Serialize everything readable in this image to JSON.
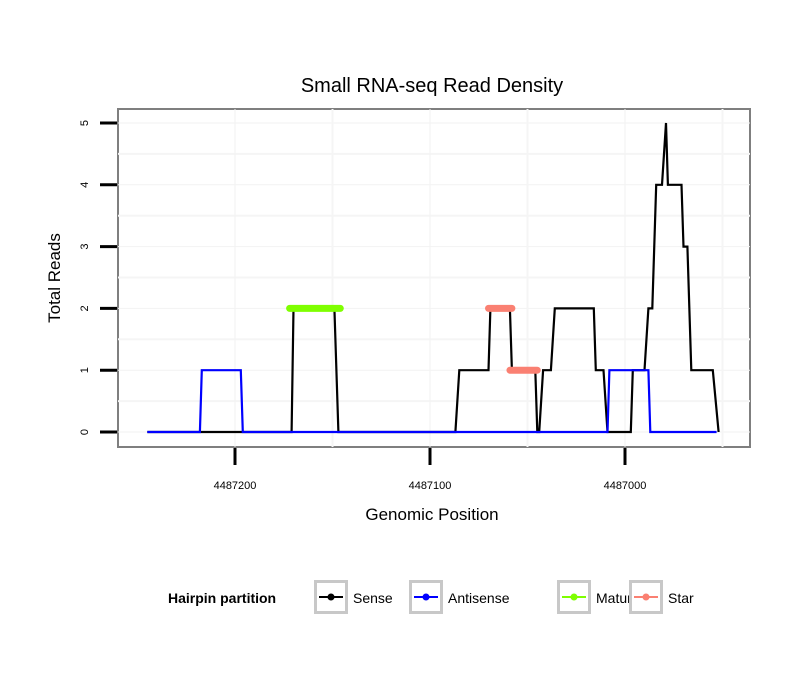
{
  "chart_data": {
    "type": "line",
    "title": "Small RNA-seq Read Density",
    "xlabel": "Genomic Position",
    "ylabel": "Total Reads",
    "x_reversed": true,
    "xlim": [
      4487260,
      4486935
    ],
    "ylim": [
      0,
      5
    ],
    "x_ticks": [
      4487200,
      4487100,
      4487000
    ],
    "x_tick_labels": [
      "4487200",
      "4487100",
      "4487000"
    ],
    "y_ticks": [
      0,
      1,
      2,
      3,
      4,
      5
    ],
    "y_tick_labels": [
      "0",
      "1",
      "2",
      "3",
      "4",
      "5"
    ],
    "grid": true,
    "legend": {
      "title": "Hairpin partition",
      "position": "bottom",
      "entries": [
        {
          "name": "Sense",
          "color": "#000000"
        },
        {
          "name": "Antisense",
          "color": "#0000ff"
        },
        {
          "name": "Mature",
          "color": "#7fff00"
        },
        {
          "name": "Star",
          "color": "#fa8072"
        }
      ]
    },
    "series": [
      {
        "name": "Sense",
        "color": "#000000",
        "points": [
          [
            4487245,
            0
          ],
          [
            4487171,
            0
          ],
          [
            4487170,
            2
          ],
          [
            4487149,
            2
          ],
          [
            4487147,
            0
          ],
          [
            4487087,
            0
          ],
          [
            4487085,
            1
          ],
          [
            4487070,
            1
          ],
          [
            4487069,
            2
          ],
          [
            4487059,
            2
          ],
          [
            4487058,
            1
          ],
          [
            4487046,
            1
          ],
          [
            4487045,
            0
          ],
          [
            4487044,
            0
          ],
          [
            4487042,
            1
          ],
          [
            4487038,
            1
          ],
          [
            4487036,
            2
          ],
          [
            4487016,
            2
          ],
          [
            4487015,
            1
          ],
          [
            4487011,
            1
          ],
          [
            4487009,
            0
          ],
          [
            4486997,
            0
          ],
          [
            4486996,
            1
          ],
          [
            4486990,
            1
          ],
          [
            4486988,
            2
          ],
          [
            4486986,
            2
          ],
          [
            4486984,
            4
          ],
          [
            4486981,
            4
          ],
          [
            4486979,
            5
          ],
          [
            4486978,
            4
          ],
          [
            4486971,
            4
          ],
          [
            4486970,
            3
          ],
          [
            4486968,
            3
          ],
          [
            4486966,
            1
          ],
          [
            4486955,
            1
          ],
          [
            4486952,
            0
          ]
        ]
      },
      {
        "name": "Antisense",
        "color": "#0000ff",
        "points": [
          [
            4487245,
            0
          ],
          [
            4487218,
            0
          ],
          [
            4487217,
            1
          ],
          [
            4487197,
            1
          ],
          [
            4487196,
            0
          ],
          [
            4487009,
            0
          ],
          [
            4487008,
            1
          ],
          [
            4486988,
            1
          ],
          [
            4486987,
            0
          ],
          [
            4486953,
            0
          ]
        ]
      },
      {
        "name": "Mature",
        "color": "#7fff00",
        "segments": [
          {
            "start": 4487172,
            "end": 4487146,
            "value": 2
          }
        ]
      },
      {
        "name": "Star",
        "color": "#fa8072",
        "segments": [
          {
            "start": 4487070,
            "end": 4487058,
            "value": 2
          },
          {
            "start": 4487059,
            "end": 4487045,
            "value": 1
          }
        ]
      }
    ]
  }
}
